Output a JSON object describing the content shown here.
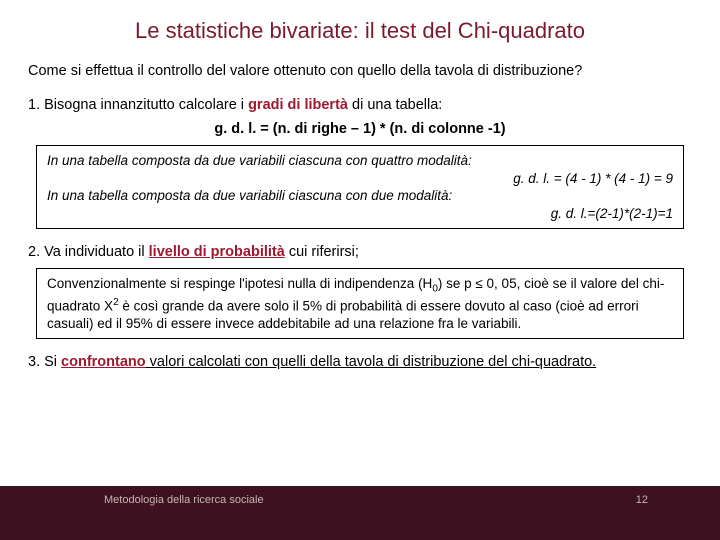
{
  "title": "Le statistiche bivariate: il test del Chi-quadrato",
  "intro": "Come si effettua il controllo del valore ottenuto con quello della tavola di distribuzione?",
  "step1_a": "1. Bisogna innanzitutto calcolare i ",
  "step1_hl": "gradi di libertà",
  "step1_b": " di una tabella:",
  "formula": "g. d. l. = (n. di righe – 1) * (n. di colonne -1)",
  "box1_l1": "In una tabella composta da due variabili ciascuna con quattro modalità:",
  "box1_r1": "g. d. l. = (4 - 1) * (4 - 1) = 9",
  "box1_l2": "In una tabella composta da due variabili ciascuna con due modalità:",
  "box1_r2": "g. d. l.=(2-1)*(2-1)=1",
  "step2_a": "2.  Va individuato il ",
  "step2_hl": "livello di probabilità",
  "step2_b": " cui riferirsi;",
  "box2_a": "Convenzionalmente si respinge l'ipotesi nulla di indipendenza (H",
  "box2_sub0": "0",
  "box2_b": ") se p ≤ 0, 05, cioè se il valore del chi-quadrato Χ",
  "box2_sup2": "2",
  "box2_c": " è così grande da avere solo il 5% di probabilità di essere dovuto al caso (cioè ad errori casuali) ed il 95% di essere invece addebitabile ad una relazione fra le variabili.",
  "step3_a": "3.  Si ",
  "step3_hl": "confrontano",
  "step3_b": " valori calcolati con quelli della tavola di distribuzione del chi-quadrato.",
  "footer_label": "Metodologia della ricerca sociale",
  "page_number": "12",
  "colors": {
    "title": "#7a1a2e",
    "highlight": "#a01830",
    "footer_bg": "#3d1220",
    "footer_text": "#c8b4b4",
    "bg": "#ffffff",
    "text": "#000000",
    "box_border": "#000000"
  }
}
